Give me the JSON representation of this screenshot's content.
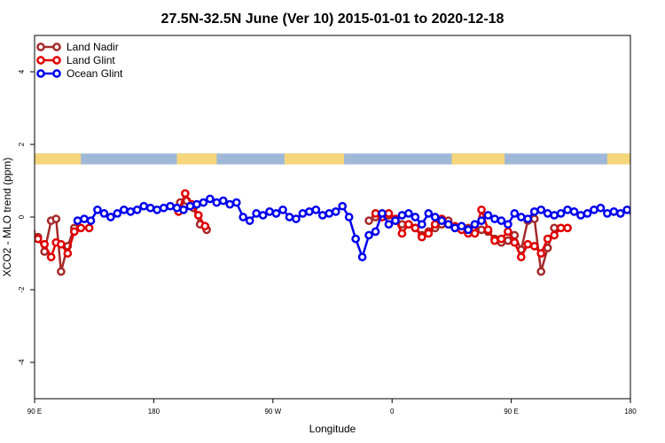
{
  "chart_data": {
    "type": "line",
    "title": "27.5N-32.5N June (Ver 10)   2015-01-01 to 2020-12-18",
    "xlabel": "Longitude",
    "ylabel": "XCO2 - MLO trend (ppm)",
    "xlim": [
      -180,
      180
    ],
    "ylim": [
      -5,
      5
    ],
    "x_ticks": [
      {
        "value": -180,
        "label": "90 E"
      },
      {
        "value": -108,
        "label": "180"
      },
      {
        "value": -36,
        "label": "90 W"
      },
      {
        "value": 36,
        "label": "0"
      },
      {
        "value": 108,
        "label": "90 E"
      },
      {
        "value": 180,
        "label": "180"
      }
    ],
    "y_ticks": [
      {
        "value": 4,
        "label": "4"
      },
      {
        "value": 2,
        "label": "2"
      },
      {
        "value": 0,
        "label": "0"
      },
      {
        "value": -2,
        "label": "-2"
      },
      {
        "value": -4,
        "label": "-4"
      }
    ],
    "grid": false,
    "legend": {
      "position": "top-left"
    },
    "colors": {
      "land": "#f5d67a",
      "ocean": "#9fb8d8"
    },
    "surface_band": {
      "y_range": [
        1.45,
        1.75
      ],
      "land_segments": [
        [
          -180,
          -152
        ],
        [
          -94,
          -70
        ],
        [
          -29,
          7
        ],
        [
          72,
          104
        ],
        [
          166,
          180
        ]
      ]
    },
    "series": [
      {
        "name": "Land Nadir",
        "color": "#a52a2a",
        "segments": [
          {
            "x": [
              -182,
              -178,
              -174,
              -170,
              -167,
              -164,
              -160,
              -156
            ],
            "y": [
              -0.45,
              -0.55,
              -0.95,
              -0.1,
              -0.05,
              -1.5,
              -0.8,
              -0.3
            ]
          },
          {
            "x": [
              -92,
              -88,
              -84,
              -80,
              -76
            ],
            "y": [
              0.4,
              0.45,
              0.25,
              -0.2,
              -0.35
            ]
          },
          {
            "x": [
              22,
              26,
              30,
              34,
              38,
              42,
              46,
              50,
              54,
              58,
              62,
              66,
              70,
              74,
              78
            ],
            "y": [
              -0.1,
              0.0,
              0.0,
              0.05,
              -0.1,
              -0.2,
              -0.2,
              -0.3,
              -0.5,
              -0.4,
              -0.3,
              -0.2,
              -0.1,
              -0.3,
              -0.3
            ]
          },
          {
            "x": [
              82,
              86,
              90,
              94,
              98,
              102,
              106,
              110,
              114,
              118,
              122,
              126,
              130,
              134
            ],
            "y": [
              -0.3,
              -0.35,
              -0.35,
              -0.4,
              -0.6,
              -0.7,
              -0.65,
              -0.5,
              -0.9,
              -0.1,
              -0.05,
              -1.5,
              -0.85,
              -0.3
            ]
          }
        ]
      },
      {
        "name": "Land Glint",
        "color": "#e00000",
        "segments": [
          {
            "x": [
              -182,
              -178,
              -174,
              -170,
              -167,
              -164,
              -160,
              -156,
              -152,
              -147
            ],
            "y": [
              -0.4,
              -0.6,
              -0.75,
              -1.1,
              -0.7,
              -0.75,
              -1.0,
              -0.4,
              -0.3,
              -0.3
            ]
          },
          {
            "x": [
              -93,
              -89,
              -85,
              -81,
              -77
            ],
            "y": [
              0.15,
              0.65,
              0.35,
              0.05,
              -0.25
            ]
          },
          {
            "x": [
              26,
              30,
              34,
              38,
              42,
              46,
              50,
              54,
              58,
              62,
              66,
              70,
              74,
              78,
              82,
              86,
              90,
              94,
              98,
              102,
              106,
              110,
              114,
              118,
              122,
              126,
              130,
              134,
              138,
              142
            ],
            "y": [
              0.1,
              0.0,
              0.1,
              -0.05,
              -0.45,
              -0.2,
              -0.3,
              -0.55,
              -0.45,
              -0.2,
              -0.05,
              -0.2,
              -0.25,
              -0.35,
              -0.45,
              -0.45,
              0.2,
              -0.35,
              -0.65,
              -0.6,
              -0.4,
              -0.7,
              -1.1,
              -0.75,
              -0.8,
              -1.0,
              -0.6,
              -0.5,
              -0.3,
              -0.3
            ]
          }
        ]
      },
      {
        "name": "Ocean Glint",
        "color": "#0000ee",
        "segments": [
          {
            "x": [
              -154,
              -150,
              -146,
              -142,
              -138,
              -134,
              -130,
              -126,
              -122,
              -118,
              -114,
              -110,
              -106,
              -102,
              -98,
              -94,
              -90,
              -86,
              -82,
              -78,
              -74,
              -70,
              -66,
              -62,
              -58,
              -54,
              -50,
              -46,
              -42,
              -38,
              -34,
              -30,
              -26,
              -22,
              -18,
              -14,
              -10,
              -6,
              -2,
              2,
              6,
              10,
              14,
              18,
              22,
              26,
              30,
              34,
              38,
              42,
              46,
              50,
              54,
              58,
              62,
              66,
              70,
              74,
              78,
              82,
              86,
              90,
              94,
              98,
              102,
              106,
              110,
              114,
              118,
              122,
              126,
              130,
              134,
              138,
              142,
              146,
              150,
              154,
              158,
              162,
              166,
              170,
              174,
              178,
              182
            ],
            "y": [
              -0.1,
              -0.05,
              -0.1,
              0.2,
              0.1,
              0.0,
              0.1,
              0.2,
              0.15,
              0.2,
              0.3,
              0.25,
              0.2,
              0.25,
              0.3,
              0.25,
              0.2,
              0.3,
              0.35,
              0.4,
              0.5,
              0.4,
              0.45,
              0.35,
              0.4,
              0.0,
              -0.1,
              0.1,
              0.05,
              0.15,
              0.1,
              0.2,
              0.0,
              -0.05,
              0.1,
              0.15,
              0.2,
              0.05,
              0.1,
              0.15,
              0.3,
              0.0,
              -0.6,
              -1.1,
              -0.5,
              -0.4,
              0.1,
              -0.2,
              -0.1,
              0.05,
              0.1,
              0.0,
              -0.2,
              0.1,
              0.0,
              -0.1,
              -0.2,
              -0.3,
              -0.25,
              -0.35,
              -0.2,
              -0.1,
              0.05,
              -0.05,
              -0.1,
              -0.2,
              0.1,
              0.0,
              -0.05,
              0.15,
              0.2,
              0.1,
              0.05,
              0.1,
              0.2,
              0.15,
              0.05,
              0.1,
              0.2,
              0.25,
              0.1,
              0.15,
              0.1,
              0.2,
              0.1
            ]
          }
        ]
      }
    ]
  }
}
